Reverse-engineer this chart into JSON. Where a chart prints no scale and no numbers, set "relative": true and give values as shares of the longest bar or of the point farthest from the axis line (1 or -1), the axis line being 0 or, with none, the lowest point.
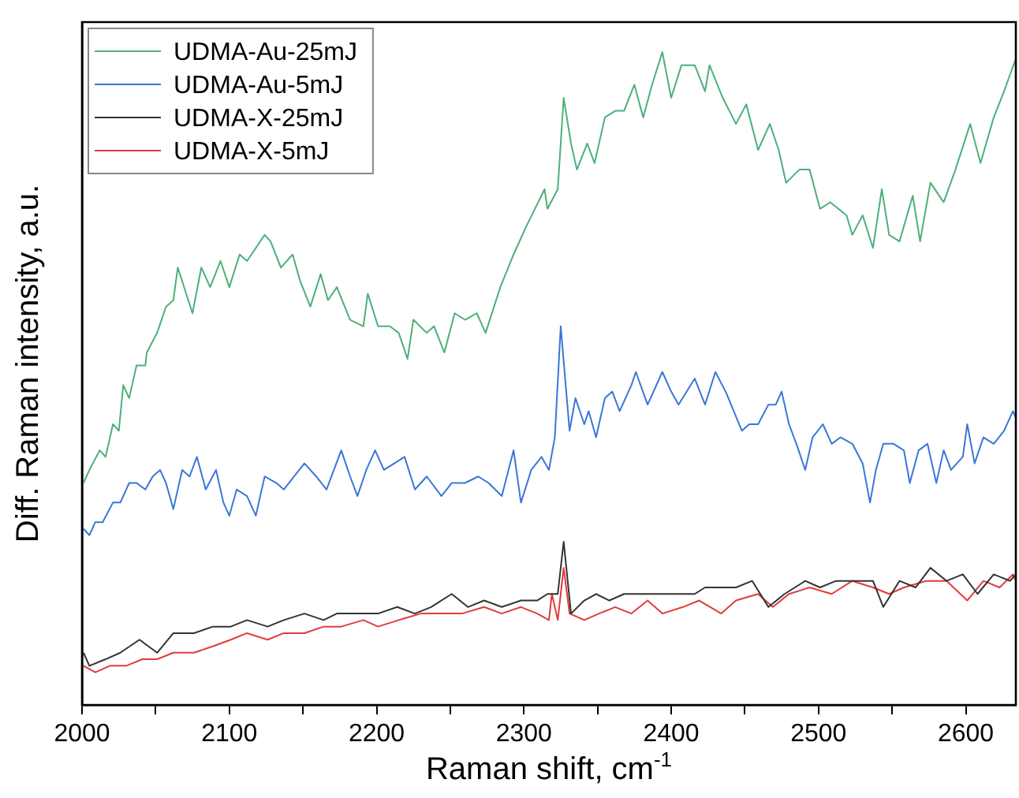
{
  "chart_data": {
    "type": "line",
    "relative": true,
    "xlabel": "Raman shift, cm$^{-1}$",
    "ylabel": "Diff. Raman intensity, a.u.",
    "xlim": [
      2000,
      2634
    ],
    "xticks": [
      2000,
      {
        "value": 2050,
        "label": null
      },
      2100,
      {
        "value": 2150,
        "label": null
      },
      2200,
      {
        "value": 2250,
        "label": null
      },
      2300,
      {
        "value": 2350,
        "label": null
      },
      2400,
      {
        "value": 2450,
        "label": null
      },
      2500,
      {
        "value": 2550,
        "label": null
      },
      2600
    ],
    "legend": "top left",
    "marker": "none",
    "line_style": "solid",
    "grid": false,
    "series": [
      {
        "name": "UDMA-Au-25mJ",
        "color": "#4cb07a",
        "x": [
          2001,
          2005,
          2012,
          2016,
          2021,
          2025,
          2028,
          2032,
          2037,
          2043,
          2044,
          2051,
          2057,
          2062,
          2065,
          2075,
          2081,
          2087,
          2094,
          2100,
          2107,
          2112,
          2118,
          2124,
          2128,
          2135,
          2143,
          2148,
          2155,
          2162,
          2167,
          2173,
          2182,
          2191,
          2194,
          2201,
          2209,
          2215,
          2221,
          2225,
          2234,
          2239,
          2246,
          2253,
          2260,
          2268,
          2274,
          2284,
          2293,
          2301,
          2314,
          2316,
          2323,
          2327,
          2332,
          2336,
          2343,
          2348,
          2355,
          2362,
          2368,
          2375,
          2381,
          2387,
          2394,
          2400,
          2407,
          2416,
          2423,
          2426,
          2435,
          2444,
          2451,
          2459,
          2467,
          2473,
          2478,
          2487,
          2494,
          2501,
          2508,
          2519,
          2523,
          2530,
          2537,
          2543,
          2548,
          2555,
          2564,
          2569,
          2576,
          2585,
          2593,
          2603,
          2610,
          2619,
          2626,
          2634
        ],
        "values": [
          0.34,
          0.36,
          0.39,
          0.38,
          0.43,
          0.42,
          0.49,
          0.47,
          0.52,
          0.52,
          0.54,
          0.57,
          0.61,
          0.62,
          0.67,
          0.6,
          0.67,
          0.64,
          0.68,
          0.64,
          0.69,
          0.68,
          0.7,
          0.72,
          0.71,
          0.67,
          0.69,
          0.65,
          0.61,
          0.66,
          0.62,
          0.64,
          0.59,
          0.58,
          0.63,
          0.58,
          0.58,
          0.57,
          0.53,
          0.59,
          0.57,
          0.58,
          0.54,
          0.6,
          0.59,
          0.6,
          0.57,
          0.64,
          0.69,
          0.73,
          0.79,
          0.76,
          0.79,
          0.93,
          0.86,
          0.82,
          0.86,
          0.83,
          0.9,
          0.91,
          0.91,
          0.95,
          0.9,
          0.95,
          1.0,
          0.93,
          0.98,
          0.98,
          0.94,
          0.98,
          0.93,
          0.89,
          0.92,
          0.85,
          0.89,
          0.85,
          0.8,
          0.82,
          0.82,
          0.76,
          0.77,
          0.75,
          0.72,
          0.75,
          0.7,
          0.79,
          0.72,
          0.71,
          0.78,
          0.71,
          0.8,
          0.77,
          0.82,
          0.89,
          0.83,
          0.9,
          0.94,
          0.99
        ]
      },
      {
        "name": "UDMA-Au-5mJ",
        "color": "#3a76d8",
        "x": [
          2001,
          2005,
          2009,
          2014,
          2021,
          2026,
          2032,
          2037,
          2043,
          2048,
          2053,
          2057,
          2062,
          2068,
          2073,
          2078,
          2084,
          2091,
          2096,
          2100,
          2105,
          2112,
          2118,
          2124,
          2132,
          2137,
          2144,
          2151,
          2159,
          2166,
          2171,
          2176,
          2182,
          2187,
          2193,
          2199,
          2205,
          2212,
          2219,
          2226,
          2234,
          2244,
          2251,
          2260,
          2269,
          2276,
          2285,
          2293,
          2298,
          2305,
          2312,
          2317,
          2321,
          2325,
          2331,
          2335,
          2341,
          2344,
          2349,
          2355,
          2360,
          2365,
          2373,
          2376,
          2384,
          2394,
          2400,
          2405,
          2416,
          2423,
          2430,
          2437,
          2448,
          2453,
          2459,
          2466,
          2471,
          2475,
          2480,
          2485,
          2491,
          2496,
          2503,
          2509,
          2515,
          2523,
          2530,
          2535,
          2539,
          2544,
          2551,
          2558,
          2562,
          2568,
          2574,
          2580,
          2585,
          2590,
          2598,
          2601,
          2606,
          2612,
          2619,
          2626,
          2632,
          2634
        ],
        "values": [
          0.27,
          0.26,
          0.28,
          0.28,
          0.31,
          0.31,
          0.34,
          0.34,
          0.33,
          0.35,
          0.36,
          0.34,
          0.3,
          0.36,
          0.35,
          0.38,
          0.33,
          0.36,
          0.31,
          0.29,
          0.33,
          0.32,
          0.29,
          0.35,
          0.34,
          0.33,
          0.35,
          0.37,
          0.35,
          0.33,
          0.36,
          0.39,
          0.35,
          0.32,
          0.36,
          0.39,
          0.36,
          0.37,
          0.38,
          0.33,
          0.35,
          0.32,
          0.34,
          0.34,
          0.35,
          0.34,
          0.32,
          0.39,
          0.31,
          0.36,
          0.38,
          0.36,
          0.41,
          0.58,
          0.42,
          0.47,
          0.43,
          0.45,
          0.41,
          0.47,
          0.48,
          0.45,
          0.49,
          0.51,
          0.46,
          0.51,
          0.48,
          0.46,
          0.5,
          0.46,
          0.51,
          0.48,
          0.42,
          0.43,
          0.43,
          0.46,
          0.46,
          0.48,
          0.43,
          0.4,
          0.36,
          0.41,
          0.43,
          0.4,
          0.41,
          0.4,
          0.37,
          0.31,
          0.36,
          0.4,
          0.4,
          0.39,
          0.34,
          0.39,
          0.4,
          0.34,
          0.39,
          0.36,
          0.38,
          0.43,
          0.37,
          0.41,
          0.4,
          0.42,
          0.45,
          0.44
        ]
      },
      {
        "name": "UDMA-X-25mJ",
        "color": "#333333",
        "x": [
          2001,
          2005,
          2016,
          2026,
          2039,
          2051,
          2062,
          2076,
          2089,
          2101,
          2112,
          2126,
          2137,
          2151,
          2164,
          2173,
          2187,
          2201,
          2214,
          2226,
          2237,
          2251,
          2262,
          2273,
          2285,
          2298,
          2309,
          2316,
          2323,
          2327,
          2332,
          2341,
          2349,
          2358,
          2368,
          2380,
          2391,
          2402,
          2416,
          2423,
          2434,
          2444,
          2455,
          2466,
          2477,
          2491,
          2501,
          2512,
          2523,
          2537,
          2544,
          2555,
          2566,
          2576,
          2587,
          2598,
          2608,
          2619,
          2630,
          2634
        ],
        "values": [
          0.08,
          0.06,
          0.07,
          0.08,
          0.1,
          0.08,
          0.11,
          0.11,
          0.12,
          0.12,
          0.13,
          0.12,
          0.13,
          0.14,
          0.13,
          0.14,
          0.14,
          0.14,
          0.15,
          0.14,
          0.15,
          0.17,
          0.15,
          0.16,
          0.15,
          0.16,
          0.16,
          0.17,
          0.17,
          0.25,
          0.14,
          0.16,
          0.17,
          0.16,
          0.17,
          0.17,
          0.17,
          0.17,
          0.17,
          0.18,
          0.18,
          0.18,
          0.19,
          0.15,
          0.17,
          0.19,
          0.18,
          0.19,
          0.19,
          0.19,
          0.15,
          0.19,
          0.18,
          0.21,
          0.19,
          0.2,
          0.17,
          0.2,
          0.19,
          0.2
        ]
      },
      {
        "name": "UDMA-X-5mJ",
        "color": "#e03c3c",
        "x": [
          2001,
          2009,
          2019,
          2030,
          2041,
          2051,
          2062,
          2076,
          2089,
          2101,
          2112,
          2126,
          2137,
          2151,
          2164,
          2176,
          2191,
          2201,
          2215,
          2230,
          2244,
          2258,
          2273,
          2285,
          2298,
          2309,
          2317,
          2319,
          2323,
          2327,
          2331,
          2341,
          2351,
          2362,
          2373,
          2384,
          2394,
          2408,
          2419,
          2434,
          2444,
          2459,
          2469,
          2480,
          2494,
          2509,
          2523,
          2537,
          2548,
          2558,
          2573,
          2587,
          2601,
          2612,
          2623,
          2632,
          2634
        ],
        "values": [
          0.06,
          0.05,
          0.06,
          0.06,
          0.07,
          0.07,
          0.08,
          0.08,
          0.09,
          0.1,
          0.11,
          0.1,
          0.11,
          0.11,
          0.12,
          0.12,
          0.13,
          0.12,
          0.13,
          0.14,
          0.14,
          0.14,
          0.15,
          0.14,
          0.15,
          0.14,
          0.13,
          0.17,
          0.13,
          0.21,
          0.14,
          0.13,
          0.14,
          0.15,
          0.14,
          0.16,
          0.14,
          0.15,
          0.16,
          0.14,
          0.16,
          0.17,
          0.15,
          0.17,
          0.18,
          0.17,
          0.19,
          0.18,
          0.17,
          0.18,
          0.19,
          0.19,
          0.16,
          0.19,
          0.18,
          0.2,
          0.19
        ]
      }
    ]
  }
}
